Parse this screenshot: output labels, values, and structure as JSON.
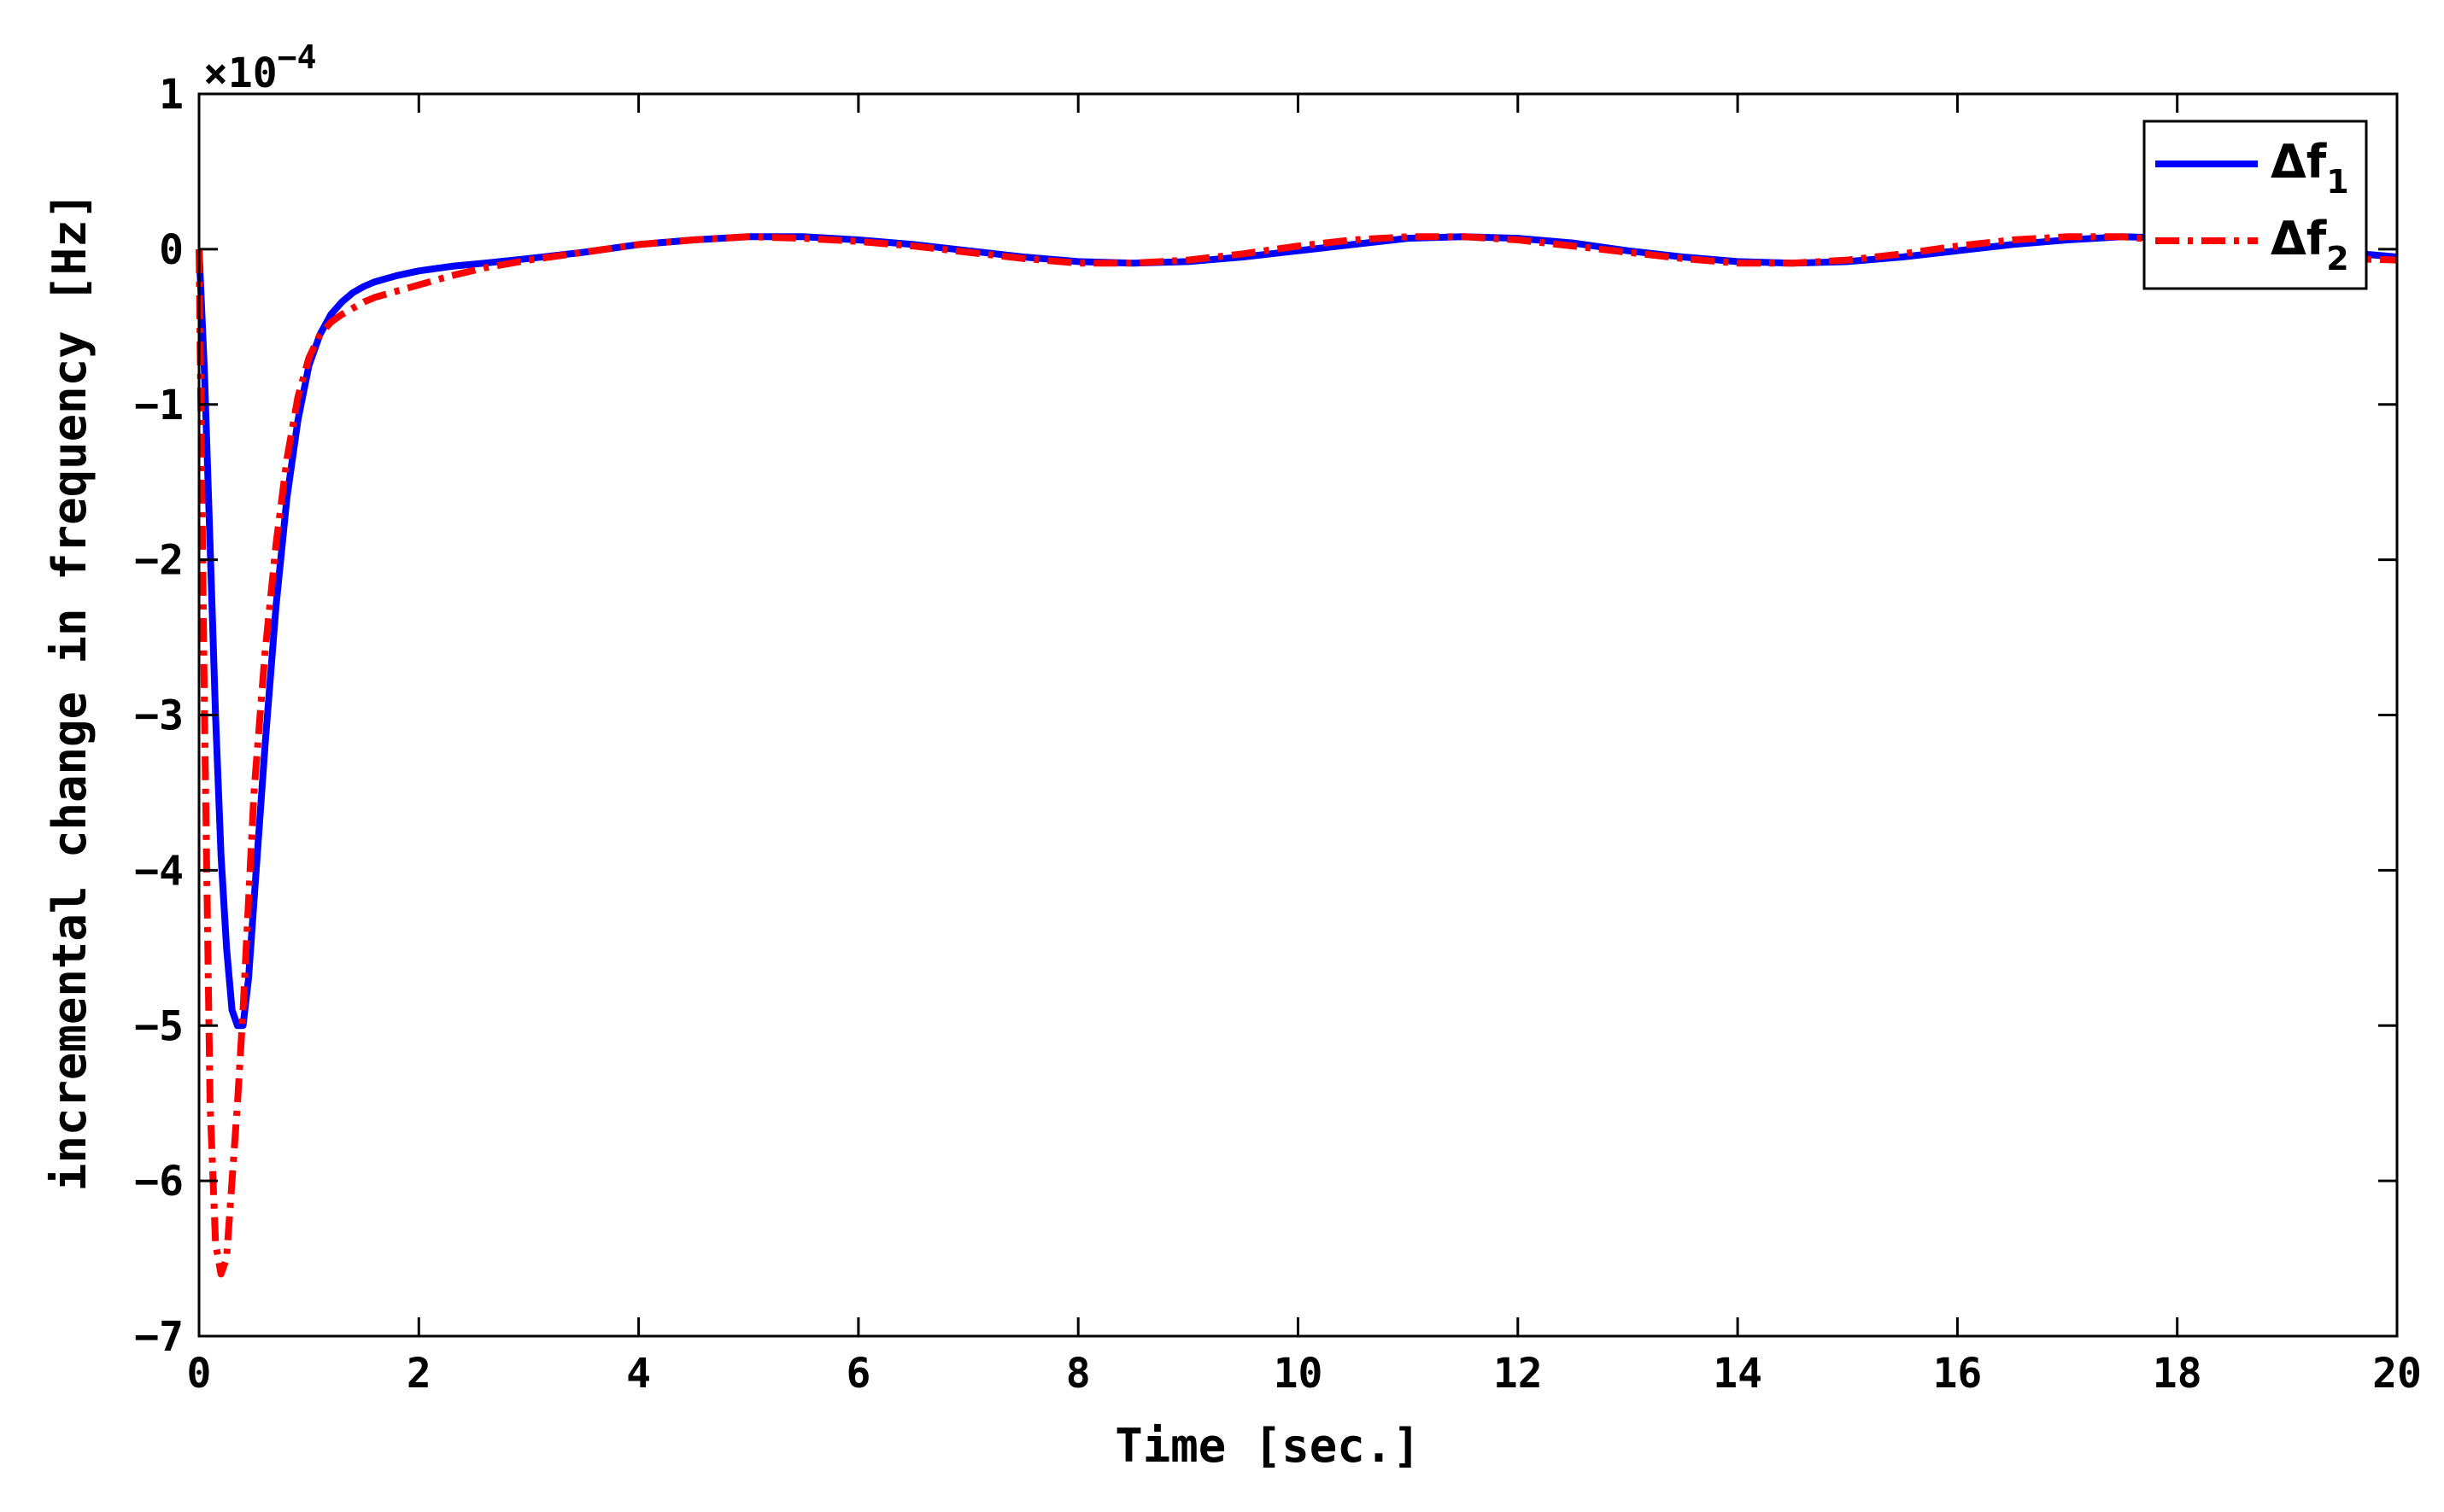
{
  "chart_data": {
    "type": "line",
    "xlabel": "Time [sec.]",
    "ylabel": "incremental change in frequency [Hz]",
    "xlim": [
      0,
      20
    ],
    "ylim": [
      -7,
      1
    ],
    "y_scale_factor": "×10",
    "y_scale_exponent": "−4",
    "xticks": [
      "0",
      "2",
      "4",
      "6",
      "8",
      "10",
      "12",
      "14",
      "16",
      "18",
      "20"
    ],
    "yticks": [
      "1",
      "0",
      "−1",
      "−2",
      "−3",
      "−4",
      "−5",
      "−6",
      "−7"
    ],
    "grid": false,
    "legend_position": "top-right",
    "series": [
      {
        "name": "Δf",
        "subscript": "1",
        "color": "#0000ff",
        "style": "solid",
        "x": [
          0,
          0.05,
          0.1,
          0.15,
          0.2,
          0.25,
          0.3,
          0.35,
          0.4,
          0.45,
          0.5,
          0.6,
          0.7,
          0.8,
          0.9,
          1.0,
          1.1,
          1.2,
          1.3,
          1.4,
          1.5,
          1.6,
          1.8,
          2.0,
          2.3,
          2.6,
          3.0,
          3.5,
          4.0,
          4.5,
          5.0,
          5.5,
          6.0,
          6.5,
          7.0,
          7.5,
          8.0,
          8.5,
          9.0,
          9.5,
          10.0,
          10.5,
          11.0,
          11.5,
          12.0,
          12.5,
          13.0,
          13.5,
          14.0,
          14.5,
          15.0,
          15.5,
          16.0,
          16.5,
          17.0,
          17.5,
          18.0,
          18.5,
          19.0,
          19.5,
          20.0
        ],
        "values": [
          0,
          -0.8,
          -1.9,
          -3.0,
          -3.9,
          -4.5,
          -4.9,
          -5.0,
          -5.0,
          -4.7,
          -4.2,
          -3.2,
          -2.3,
          -1.6,
          -1.1,
          -0.75,
          -0.55,
          -0.42,
          -0.34,
          -0.28,
          -0.24,
          -0.21,
          -0.17,
          -0.14,
          -0.11,
          -0.09,
          -0.06,
          -0.02,
          0.03,
          0.06,
          0.08,
          0.08,
          0.06,
          0.03,
          -0.01,
          -0.05,
          -0.08,
          -0.09,
          -0.08,
          -0.05,
          -0.01,
          0.03,
          0.07,
          0.08,
          0.07,
          0.04,
          -0.01,
          -0.05,
          -0.08,
          -0.09,
          -0.08,
          -0.05,
          -0.01,
          0.03,
          0.06,
          0.08,
          0.07,
          0.04,
          0.01,
          -0.02,
          -0.05
        ]
      },
      {
        "name": "Δf",
        "subscript": "2",
        "color": "#ff0000",
        "style": "dashdot",
        "x": [
          0,
          0.05,
          0.1,
          0.15,
          0.2,
          0.25,
          0.3,
          0.35,
          0.4,
          0.45,
          0.5,
          0.6,
          0.7,
          0.8,
          0.9,
          1.0,
          1.1,
          1.2,
          1.3,
          1.4,
          1.5,
          1.6,
          1.8,
          2.0,
          2.3,
          2.6,
          3.0,
          3.5,
          4.0,
          4.5,
          5.0,
          5.5,
          6.0,
          6.5,
          7.0,
          7.5,
          8.0,
          8.5,
          9.0,
          9.5,
          10.0,
          10.5,
          11.0,
          11.5,
          12.0,
          12.5,
          13.0,
          13.5,
          14.0,
          14.5,
          15.0,
          15.5,
          16.0,
          16.5,
          17.0,
          17.5,
          18.0,
          18.5,
          19.0,
          19.5,
          20.0
        ],
        "values": [
          0,
          -3.0,
          -5.5,
          -6.4,
          -6.6,
          -6.5,
          -6.0,
          -5.5,
          -4.9,
          -4.2,
          -3.5,
          -2.6,
          -1.9,
          -1.35,
          -0.95,
          -0.7,
          -0.55,
          -0.47,
          -0.42,
          -0.38,
          -0.34,
          -0.31,
          -0.27,
          -0.23,
          -0.17,
          -0.12,
          -0.07,
          -0.02,
          0.03,
          0.06,
          0.08,
          0.07,
          0.05,
          0.02,
          -0.02,
          -0.06,
          -0.09,
          -0.09,
          -0.07,
          -0.03,
          0.02,
          0.06,
          0.08,
          0.08,
          0.06,
          0.02,
          -0.02,
          -0.06,
          -0.09,
          -0.09,
          -0.07,
          -0.03,
          0.02,
          0.06,
          0.08,
          0.08,
          0.05,
          0.01,
          -0.03,
          -0.06,
          -0.07
        ]
      }
    ]
  }
}
